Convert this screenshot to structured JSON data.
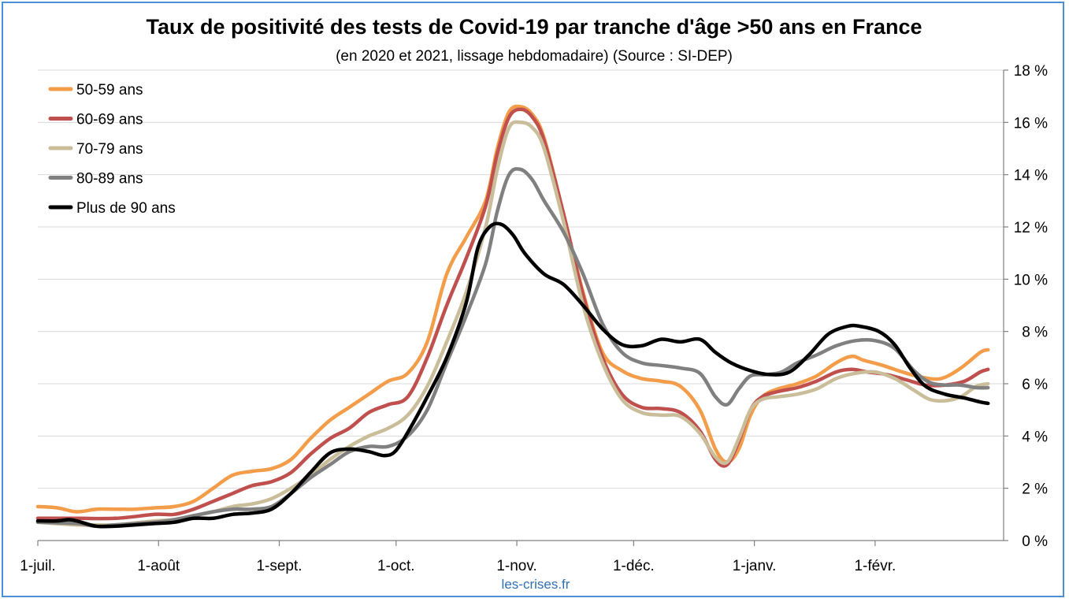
{
  "chart_data": {
    "type": "line",
    "title": "Taux de positivité des tests de Covid-19 par tranche d'âge >50 ans en France",
    "subtitle": "(en 2020 et 2021, lissage hebdomadaire) (Source : SI-DEP)",
    "credit": "les-crises.fr",
    "x_unit": "days since 1-juil.",
    "xlim": [
      0,
      248
    ],
    "x_ticks": [
      {
        "label": "1-juil.",
        "value": 0
      },
      {
        "label": "1-août",
        "value": 31
      },
      {
        "label": "1-sept.",
        "value": 62
      },
      {
        "label": "1-oct.",
        "value": 92
      },
      {
        "label": "1-nov.",
        "value": 123
      },
      {
        "label": "1-déc.",
        "value": 153
      },
      {
        "label": "1-janv.",
        "value": 184
      },
      {
        "label": "1-févr.",
        "value": 215
      }
    ],
    "ylim": [
      0,
      18
    ],
    "y_ticks": [
      {
        "label": "0 %",
        "value": 0
      },
      {
        "label": "2 %",
        "value": 2
      },
      {
        "label": "4 %",
        "value": 4
      },
      {
        "label": "6 %",
        "value": 6
      },
      {
        "label": "8 %",
        "value": 8
      },
      {
        "label": "10 %",
        "value": 10
      },
      {
        "label": "12 %",
        "value": 12
      },
      {
        "label": "14 %",
        "value": 14
      },
      {
        "label": "16 %",
        "value": 16
      },
      {
        "label": "18 %",
        "value": 18
      }
    ],
    "y_axis_position": "right",
    "grid": true,
    "legend_position": "top-left",
    "series": [
      {
        "name": "50-59 ans",
        "color": "#f39c4a",
        "points": [
          [
            0,
            1.3
          ],
          [
            5,
            1.25
          ],
          [
            10,
            1.1
          ],
          [
            15,
            1.2
          ],
          [
            20,
            1.2
          ],
          [
            25,
            1.2
          ],
          [
            30,
            1.25
          ],
          [
            35,
            1.3
          ],
          [
            40,
            1.5
          ],
          [
            45,
            2.0
          ],
          [
            50,
            2.5
          ],
          [
            55,
            2.65
          ],
          [
            60,
            2.75
          ],
          [
            65,
            3.1
          ],
          [
            70,
            3.9
          ],
          [
            75,
            4.6
          ],
          [
            80,
            5.1
          ],
          [
            85,
            5.6
          ],
          [
            90,
            6.1
          ],
          [
            95,
            6.4
          ],
          [
            100,
            7.6
          ],
          [
            105,
            10.2
          ],
          [
            110,
            11.6
          ],
          [
            115,
            13.0
          ],
          [
            118,
            15.0
          ],
          [
            121,
            16.4
          ],
          [
            124,
            16.6
          ],
          [
            127,
            16.3
          ],
          [
            130,
            15.4
          ],
          [
            135,
            12.5
          ],
          [
            140,
            9.5
          ],
          [
            145,
            7.2
          ],
          [
            150,
            6.5
          ],
          [
            155,
            6.2
          ],
          [
            160,
            6.1
          ],
          [
            165,
            5.9
          ],
          [
            170,
            5.0
          ],
          [
            174,
            3.5
          ],
          [
            177,
            3.0
          ],
          [
            180,
            3.5
          ],
          [
            183,
            4.8
          ],
          [
            186,
            5.5
          ],
          [
            190,
            5.8
          ],
          [
            195,
            6.0
          ],
          [
            200,
            6.3
          ],
          [
            205,
            6.8
          ],
          [
            209,
            7.05
          ],
          [
            212,
            6.9
          ],
          [
            217,
            6.7
          ],
          [
            222,
            6.45
          ],
          [
            227,
            6.25
          ],
          [
            232,
            6.2
          ],
          [
            237,
            6.6
          ],
          [
            242,
            7.2
          ],
          [
            244,
            7.3
          ]
        ]
      },
      {
        "name": "60-69 ans",
        "color": "#c0504d",
        "points": [
          [
            0,
            0.85
          ],
          [
            10,
            0.85
          ],
          [
            20,
            0.85
          ],
          [
            30,
            1.0
          ],
          [
            35,
            1.0
          ],
          [
            40,
            1.2
          ],
          [
            45,
            1.5
          ],
          [
            50,
            1.8
          ],
          [
            55,
            2.1
          ],
          [
            60,
            2.25
          ],
          [
            65,
            2.6
          ],
          [
            70,
            3.3
          ],
          [
            75,
            3.9
          ],
          [
            80,
            4.3
          ],
          [
            85,
            4.9
          ],
          [
            90,
            5.2
          ],
          [
            95,
            5.5
          ],
          [
            100,
            7.0
          ],
          [
            105,
            9.0
          ],
          [
            110,
            10.8
          ],
          [
            115,
            12.8
          ],
          [
            118,
            14.8
          ],
          [
            121,
            16.2
          ],
          [
            124,
            16.5
          ],
          [
            127,
            16.2
          ],
          [
            130,
            15.3
          ],
          [
            135,
            12.5
          ],
          [
            140,
            9.4
          ],
          [
            145,
            7.0
          ],
          [
            150,
            5.6
          ],
          [
            155,
            5.1
          ],
          [
            160,
            5.05
          ],
          [
            165,
            4.9
          ],
          [
            170,
            4.2
          ],
          [
            174,
            3.1
          ],
          [
            177,
            2.9
          ],
          [
            180,
            3.8
          ],
          [
            183,
            5.0
          ],
          [
            186,
            5.5
          ],
          [
            190,
            5.7
          ],
          [
            195,
            5.85
          ],
          [
            200,
            6.1
          ],
          [
            205,
            6.45
          ],
          [
            209,
            6.55
          ],
          [
            213,
            6.45
          ],
          [
            218,
            6.35
          ],
          [
            223,
            6.15
          ],
          [
            228,
            5.95
          ],
          [
            233,
            5.95
          ],
          [
            238,
            6.1
          ],
          [
            242,
            6.45
          ],
          [
            244,
            6.55
          ]
        ]
      },
      {
        "name": "70-79 ans",
        "color": "#c9bd9a",
        "points": [
          [
            0,
            0.7
          ],
          [
            10,
            0.6
          ],
          [
            15,
            0.6
          ],
          [
            20,
            0.6
          ],
          [
            30,
            0.75
          ],
          [
            35,
            0.8
          ],
          [
            40,
            0.95
          ],
          [
            45,
            1.1
          ],
          [
            50,
            1.3
          ],
          [
            55,
            1.4
          ],
          [
            60,
            1.6
          ],
          [
            65,
            2.0
          ],
          [
            70,
            2.5
          ],
          [
            75,
            3.1
          ],
          [
            80,
            3.6
          ],
          [
            85,
            4.0
          ],
          [
            90,
            4.3
          ],
          [
            95,
            4.8
          ],
          [
            100,
            5.9
          ],
          [
            105,
            7.6
          ],
          [
            110,
            9.5
          ],
          [
            115,
            12.0
          ],
          [
            118,
            14.2
          ],
          [
            121,
            15.8
          ],
          [
            124,
            16.0
          ],
          [
            127,
            15.8
          ],
          [
            130,
            15.0
          ],
          [
            135,
            12.2
          ],
          [
            140,
            9.0
          ],
          [
            145,
            6.8
          ],
          [
            150,
            5.4
          ],
          [
            155,
            4.9
          ],
          [
            160,
            4.8
          ],
          [
            165,
            4.75
          ],
          [
            170,
            4.1
          ],
          [
            174,
            3.2
          ],
          [
            177,
            3.0
          ],
          [
            180,
            3.9
          ],
          [
            183,
            5.0
          ],
          [
            186,
            5.4
          ],
          [
            190,
            5.5
          ],
          [
            195,
            5.6
          ],
          [
            200,
            5.8
          ],
          [
            205,
            6.2
          ],
          [
            210,
            6.4
          ],
          [
            215,
            6.45
          ],
          [
            220,
            6.2
          ],
          [
            225,
            5.75
          ],
          [
            229,
            5.4
          ],
          [
            233,
            5.35
          ],
          [
            237,
            5.5
          ],
          [
            241,
            5.9
          ],
          [
            244,
            6.0
          ]
        ]
      },
      {
        "name": "80-89 ans",
        "color": "#808080",
        "points": [
          [
            0,
            0.7
          ],
          [
            10,
            0.65
          ],
          [
            15,
            0.55
          ],
          [
            20,
            0.6
          ],
          [
            30,
            0.7
          ],
          [
            35,
            0.8
          ],
          [
            40,
            0.95
          ],
          [
            45,
            1.1
          ],
          [
            50,
            1.2
          ],
          [
            55,
            1.2
          ],
          [
            60,
            1.3
          ],
          [
            65,
            1.8
          ],
          [
            70,
            2.4
          ],
          [
            75,
            2.9
          ],
          [
            80,
            3.4
          ],
          [
            85,
            3.6
          ],
          [
            90,
            3.6
          ],
          [
            95,
            4.0
          ],
          [
            100,
            5.0
          ],
          [
            105,
            6.8
          ],
          [
            110,
            8.6
          ],
          [
            115,
            10.6
          ],
          [
            118,
            12.6
          ],
          [
            121,
            14.0
          ],
          [
            124,
            14.2
          ],
          [
            127,
            13.8
          ],
          [
            130,
            13.0
          ],
          [
            135,
            11.8
          ],
          [
            140,
            10.2
          ],
          [
            145,
            8.3
          ],
          [
            150,
            7.2
          ],
          [
            155,
            6.8
          ],
          [
            160,
            6.7
          ],
          [
            165,
            6.6
          ],
          [
            170,
            6.4
          ],
          [
            174,
            5.5
          ],
          [
            177,
            5.2
          ],
          [
            180,
            5.8
          ],
          [
            183,
            6.3
          ],
          [
            187,
            6.35
          ],
          [
            191,
            6.45
          ],
          [
            195,
            6.8
          ],
          [
            200,
            7.1
          ],
          [
            205,
            7.45
          ],
          [
            210,
            7.65
          ],
          [
            215,
            7.65
          ],
          [
            220,
            7.35
          ],
          [
            225,
            6.5
          ],
          [
            229,
            6.05
          ],
          [
            233,
            5.95
          ],
          [
            237,
            5.95
          ],
          [
            241,
            5.85
          ],
          [
            244,
            5.85
          ]
        ]
      },
      {
        "name": "Plus de 90 ans",
        "color": "#000000",
        "points": [
          [
            0,
            0.75
          ],
          [
            5,
            0.75
          ],
          [
            8,
            0.8
          ],
          [
            10,
            0.75
          ],
          [
            15,
            0.55
          ],
          [
            20,
            0.55
          ],
          [
            25,
            0.6
          ],
          [
            30,
            0.65
          ],
          [
            35,
            0.7
          ],
          [
            40,
            0.85
          ],
          [
            45,
            0.85
          ],
          [
            50,
            1.0
          ],
          [
            55,
            1.05
          ],
          [
            60,
            1.2
          ],
          [
            65,
            1.8
          ],
          [
            70,
            2.6
          ],
          [
            75,
            3.35
          ],
          [
            80,
            3.5
          ],
          [
            85,
            3.4
          ],
          [
            89,
            3.25
          ],
          [
            92,
            3.45
          ],
          [
            96,
            4.4
          ],
          [
            100,
            5.5
          ],
          [
            105,
            7.0
          ],
          [
            110,
            9.1
          ],
          [
            113,
            11.2
          ],
          [
            116,
            12.0
          ],
          [
            119,
            12.1
          ],
          [
            122,
            11.7
          ],
          [
            125,
            11.0
          ],
          [
            130,
            10.2
          ],
          [
            135,
            9.8
          ],
          [
            140,
            9.0
          ],
          [
            145,
            8.1
          ],
          [
            150,
            7.5
          ],
          [
            155,
            7.45
          ],
          [
            160,
            7.7
          ],
          [
            165,
            7.6
          ],
          [
            170,
            7.7
          ],
          [
            174,
            7.2
          ],
          [
            178,
            6.8
          ],
          [
            183,
            6.5
          ],
          [
            188,
            6.35
          ],
          [
            193,
            6.45
          ],
          [
            198,
            7.1
          ],
          [
            203,
            7.9
          ],
          [
            208,
            8.2
          ],
          [
            211,
            8.2
          ],
          [
            216,
            8.0
          ],
          [
            220,
            7.5
          ],
          [
            224,
            6.6
          ],
          [
            228,
            5.9
          ],
          [
            233,
            5.6
          ],
          [
            238,
            5.45
          ],
          [
            242,
            5.3
          ],
          [
            244,
            5.25
          ]
        ]
      }
    ]
  }
}
